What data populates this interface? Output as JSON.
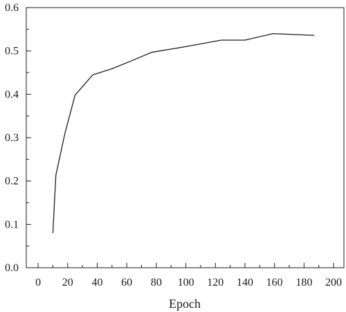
{
  "chart_data": {
    "type": "line",
    "title": "",
    "xlabel": "Epoch",
    "ylabel": "",
    "xlim": [
      -8,
      207
    ],
    "ylim": [
      0,
      0.6
    ],
    "xticks": [
      0,
      20,
      40,
      60,
      80,
      100,
      120,
      140,
      160,
      180,
      200
    ],
    "xtick_labels": [
      "0",
      "20",
      "40",
      "60",
      "80",
      "100",
      "120",
      "140",
      "160",
      "180",
      "200"
    ],
    "yticks": [
      0.0,
      0.1,
      0.2,
      0.3,
      0.4,
      0.5,
      0.6
    ],
    "ytick_labels": [
      "0.0",
      "0.1",
      "0.2",
      "0.3",
      "0.4",
      "0.5",
      "0.6"
    ],
    "grid": false,
    "legend": "none",
    "line_color": "#1a1a1a",
    "series": [
      {
        "x": [
          10,
          12,
          18,
          25,
          37,
          50,
          63,
          77,
          100,
          124,
          140,
          159,
          187
        ],
        "y": [
          0.08,
          0.213,
          0.308,
          0.398,
          0.445,
          0.459,
          0.477,
          0.497,
          0.51,
          0.525,
          0.525,
          0.54,
          0.536
        ]
      }
    ]
  }
}
